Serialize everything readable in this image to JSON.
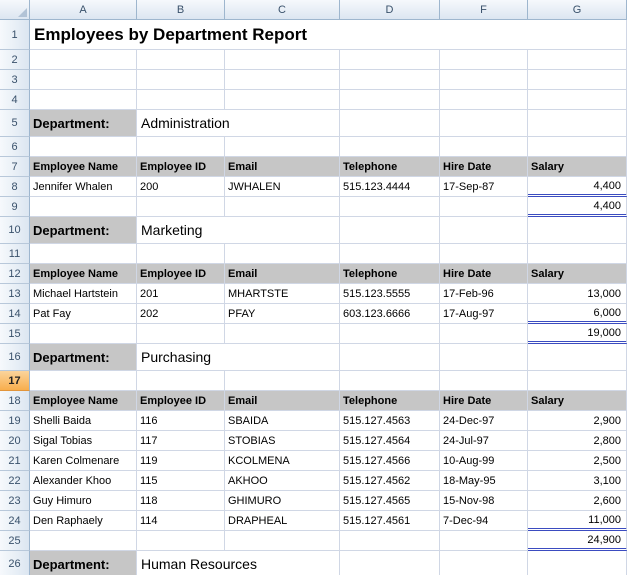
{
  "colors": {
    "grid_line": "#D0D7E5",
    "section_header_fill": "#C6C6C6",
    "total_underline": "#3B4CC0",
    "selected_row_fill": "#F8AE4D",
    "chrome_text": "#39516B"
  },
  "columns": [
    "A",
    "B",
    "C",
    "D",
    "F",
    "G"
  ],
  "title": "Employees by Department Report",
  "department_label": "Department:",
  "table_headers": [
    "Employee Name",
    "Employee ID",
    "Email",
    "Telephone",
    "Hire Date",
    "Salary"
  ],
  "rows": [
    {
      "num": 1,
      "type": "title"
    },
    {
      "num": 2,
      "type": "blank"
    },
    {
      "num": 3,
      "type": "blank"
    },
    {
      "num": 4,
      "type": "blank"
    },
    {
      "num": 5,
      "type": "department",
      "department": "Administration"
    },
    {
      "num": 6,
      "type": "blank"
    },
    {
      "num": 7,
      "type": "colheader"
    },
    {
      "num": 8,
      "type": "data",
      "cells": [
        "Jennifer Whalen",
        "200",
        "JWHALEN",
        "515.123.4444",
        "17-Sep-87",
        "4,400"
      ],
      "salary_underline": true
    },
    {
      "num": 9,
      "type": "total",
      "total": "4,400"
    },
    {
      "num": 10,
      "type": "department",
      "department": "Marketing"
    },
    {
      "num": 11,
      "type": "blank"
    },
    {
      "num": 12,
      "type": "colheader"
    },
    {
      "num": 13,
      "type": "data",
      "cells": [
        "Michael Hartstein",
        "201",
        "MHARTSTE",
        "515.123.5555",
        "17-Feb-96",
        "13,000"
      ]
    },
    {
      "num": 14,
      "type": "data",
      "cells": [
        "Pat Fay",
        "202",
        "PFAY",
        "603.123.6666",
        "17-Aug-97",
        "6,000"
      ],
      "salary_underline": true
    },
    {
      "num": 15,
      "type": "total",
      "total": "19,000"
    },
    {
      "num": 16,
      "type": "department",
      "department": "Purchasing"
    },
    {
      "num": 17,
      "type": "blank",
      "selected": true
    },
    {
      "num": 18,
      "type": "colheader"
    },
    {
      "num": 19,
      "type": "data",
      "cells": [
        "Shelli Baida",
        "116",
        "SBAIDA",
        "515.127.4563",
        "24-Dec-97",
        "2,900"
      ]
    },
    {
      "num": 20,
      "type": "data",
      "cells": [
        "Sigal Tobias",
        "117",
        "STOBIAS",
        "515.127.4564",
        "24-Jul-97",
        "2,800"
      ]
    },
    {
      "num": 21,
      "type": "data",
      "cells": [
        "Karen Colmenare",
        "119",
        "KCOLMENA",
        "515.127.4566",
        "10-Aug-99",
        "2,500"
      ]
    },
    {
      "num": 22,
      "type": "data",
      "cells": [
        "Alexander Khoo",
        "115",
        "AKHOO",
        "515.127.4562",
        "18-May-95",
        "3,100"
      ]
    },
    {
      "num": 23,
      "type": "data",
      "cells": [
        "Guy Himuro",
        "118",
        "GHIMURO",
        "515.127.4565",
        "15-Nov-98",
        "2,600"
      ]
    },
    {
      "num": 24,
      "type": "data",
      "cells": [
        "Den Raphaely",
        "114",
        "DRAPHEAL",
        "515.127.4561",
        "7-Dec-94",
        "11,000"
      ],
      "salary_underline": true
    },
    {
      "num": 25,
      "type": "total",
      "total": "24,900"
    },
    {
      "num": 26,
      "type": "department",
      "department": "Human Resources"
    }
  ]
}
